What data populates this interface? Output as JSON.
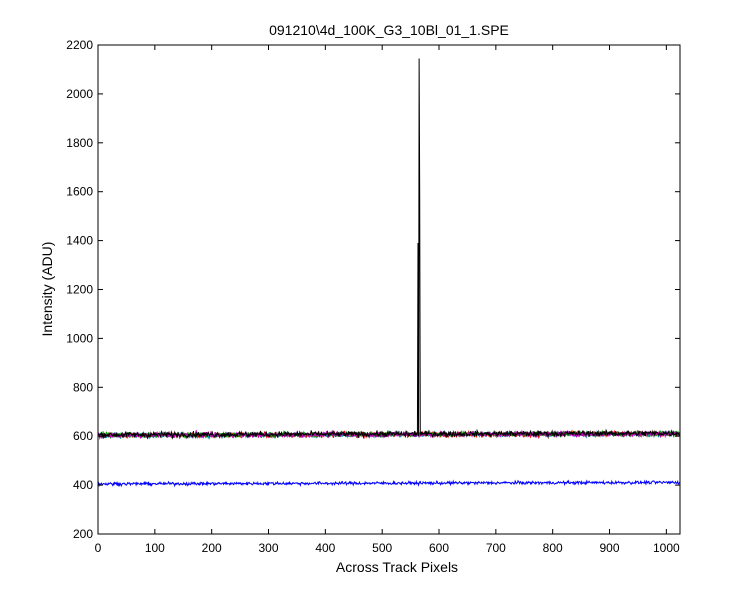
{
  "chart_data": {
    "type": "line",
    "title": "091210\\4d_100K_G3_10Bl_01_1.SPE",
    "xlabel": "Across Track Pixels",
    "ylabel": "Intensity (ADU)",
    "xlim": [
      0,
      1024
    ],
    "ylim": [
      200,
      2200
    ],
    "xticks": [
      0,
      100,
      200,
      300,
      400,
      500,
      600,
      700,
      800,
      900,
      1000
    ],
    "yticks": [
      200,
      400,
      600,
      800,
      1000,
      1200,
      1400,
      1600,
      1800,
      2000,
      2200
    ],
    "grid": false,
    "legend": "none",
    "series": [
      {
        "color": "#00a0a0",
        "baseline": 603,
        "noise": 10,
        "spikes": []
      },
      {
        "color": "#ff0000",
        "baseline": 604,
        "noise": 10,
        "spikes": []
      },
      {
        "color": "#00a000",
        "baseline": 605,
        "noise": 10,
        "spikes": []
      },
      {
        "color": "#c000c0",
        "baseline": 604,
        "noise": 10,
        "spikes": []
      },
      {
        "color": "#000000",
        "baseline": 606,
        "noise": 11,
        "spikes": [
          {
            "x": 563,
            "y": 1390
          },
          {
            "x": 565,
            "y": 2145
          },
          {
            "x": 566,
            "y": 1590
          }
        ]
      },
      {
        "color": "#0000ff",
        "baseline": 405,
        "noise": 6,
        "spikes": []
      }
    ]
  }
}
